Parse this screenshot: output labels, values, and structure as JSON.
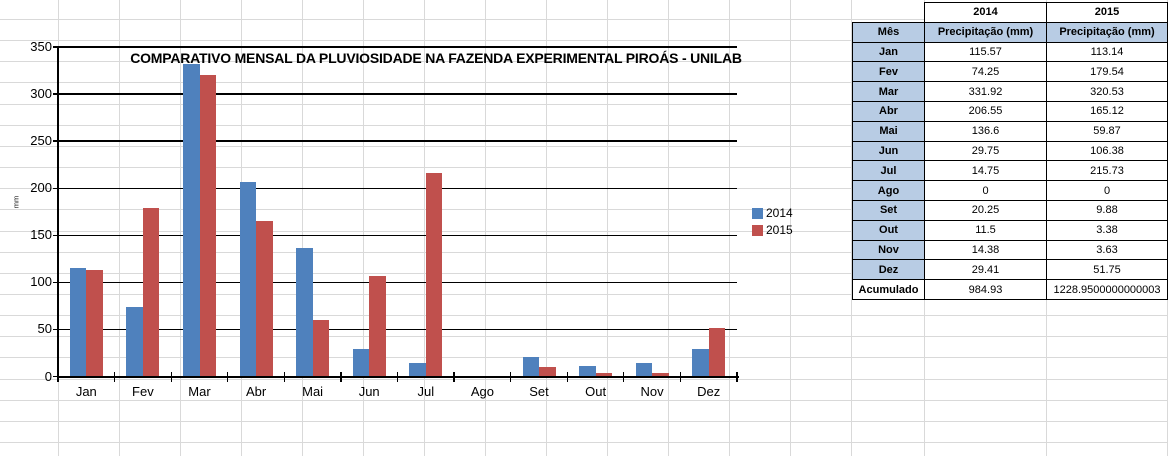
{
  "chart_data": {
    "type": "bar",
    "title": "COMPARATIVO MENSAL DA PLUVIOSIDADE NA FAZENDA EXPERIMENTAL PIROÁS - UNILAB",
    "xlabel": "",
    "ylabel": "mm",
    "ylim": [
      0,
      350
    ],
    "yticks": [
      0,
      50,
      100,
      150,
      200,
      250,
      300,
      350
    ],
    "grid": true,
    "legend_position": "right",
    "categories": [
      "Jan",
      "Fev",
      "Mar",
      "Abr",
      "Mai",
      "Jun",
      "Jul",
      "Ago",
      "Set",
      "Out",
      "Nov",
      "Dez"
    ],
    "series": [
      {
        "name": "2014",
        "color": "#4F81BD",
        "values": [
          115.57,
          74.25,
          331.92,
          206.55,
          136.6,
          29.75,
          14.75,
          0,
          20.25,
          11.5,
          14.38,
          29.41
        ]
      },
      {
        "name": "2015",
        "color": "#C0504D",
        "values": [
          113.14,
          179.54,
          320.53,
          165.12,
          59.87,
          106.38,
          215.73,
          0,
          9.88,
          3.38,
          3.63,
          51.75
        ]
      }
    ]
  },
  "table": {
    "year_headers": [
      "2014",
      "2015"
    ],
    "header": [
      "Mês",
      "Precipitação (mm)",
      "Precipitação (mm)"
    ],
    "rows": [
      [
        "Jan",
        "115.57",
        "113.14"
      ],
      [
        "Fev",
        "74.25",
        "179.54"
      ],
      [
        "Mar",
        "331.92",
        "320.53"
      ],
      [
        "Abr",
        "206.55",
        "165.12"
      ],
      [
        "Mai",
        "136.6",
        "59.87"
      ],
      [
        "Jun",
        "29.75",
        "106.38"
      ],
      [
        "Jul",
        "14.75",
        "215.73"
      ],
      [
        "Ago",
        "0",
        "0"
      ],
      [
        "Set",
        "20.25",
        "9.88"
      ],
      [
        "Out",
        "11.5",
        "3.38"
      ],
      [
        "Nov",
        "14.38",
        "3.63"
      ],
      [
        "Dez",
        "29.41",
        "51.75"
      ]
    ],
    "footer": [
      "Acumulado",
      "984.93",
      "1228.9500000000003"
    ]
  },
  "colors": {
    "series_2014": "#4F81BD",
    "series_2015": "#C0504D",
    "table_header_fill": "#B8CCE4",
    "sheet_gridline": "#D9D9D9",
    "chart_gridline": "#000000"
  }
}
